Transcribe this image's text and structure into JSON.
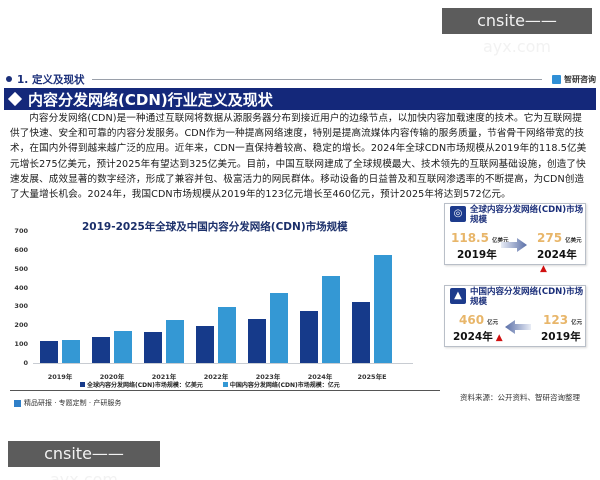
{
  "watermark": {
    "text": "cnsite——ayx.com"
  },
  "section": {
    "title": "1. 定义及现状",
    "brand": "智研咨询"
  },
  "banner": {
    "title": "内容分发网络(CDN)行业定义及现状"
  },
  "paragraph": "内容分发网络(CDN)是一种通过互联网将数据从源服务器分布到接近用户的边缘节点，以加快内容加载速度的技术。它为互联网提供了快速、安全和可靠的内容分发服务。CDN作为一种提高网络速度，特别是提高流媒体内容传输的服务质量，节省骨干网络带宽的技术，在国内外得到越来越广泛的应用。近年来，CDN一直保持着较高、稳定的增长。2024年全球CDN市场规模从2019年的118.5亿美元增长275亿美元，预计2025年有望达到325亿美元。目前，中国互联网建成了全球规模最大、技术领先的互联网基础设施，创造了快速发展、成效显著的数字经济，形成了兼容并包、极富活力的网民群体。移动设备的日益普及和互联网渗透率的不断提高，为CDN创造了大量增长机会。2024年，我国CDN市场规模从2019年的123亿元增长至460亿元，预计2025年将达到572亿元。",
  "chart_data": {
    "type": "bar",
    "title": "2019-2025年全球及中国内容分发网络(CDN)市场规模",
    "xlabel": "",
    "ylabel": "",
    "ylim": [
      0,
      700
    ],
    "yticks": [
      0,
      100,
      200,
      300,
      400,
      500,
      600,
      700
    ],
    "grid": false,
    "legend_position": "bottom",
    "categories": [
      "2019年",
      "2020年",
      "2021年",
      "2022年",
      "2023年",
      "2024年",
      "2025年E"
    ],
    "series": [
      {
        "name": "全球内容分发网络(CDN)市场规模：亿美元",
        "color": "#163a8a",
        "values": [
          118.5,
          137,
          165,
          197,
          233,
          275,
          325
        ]
      },
      {
        "name": "中国内容分发网络(CDN)市场规模：亿元",
        "color": "#3498d4",
        "values": [
          123,
          168,
          230,
          297,
          370,
          460,
          572
        ]
      }
    ]
  },
  "cards": [
    {
      "title": "全球内容分发网络(CDN)市场规模",
      "left_value": "118.5",
      "left_unit": "亿美元",
      "left_year": "2019年",
      "right_value": "275",
      "right_unit": "亿美元",
      "right_year": "2024年",
      "arrow": "right"
    },
    {
      "title": "中国内容分发网络(CDN)市场规模",
      "left_value": "460",
      "left_unit": "亿元",
      "left_year": "2024年",
      "right_value": "123",
      "right_unit": "亿元",
      "right_year": "2019年",
      "arrow": "left"
    }
  ],
  "footer": {
    "left": "精品研报 · 专题定制 · 产研服务",
    "source": "资料来源：公开资料、智研咨询整理"
  }
}
